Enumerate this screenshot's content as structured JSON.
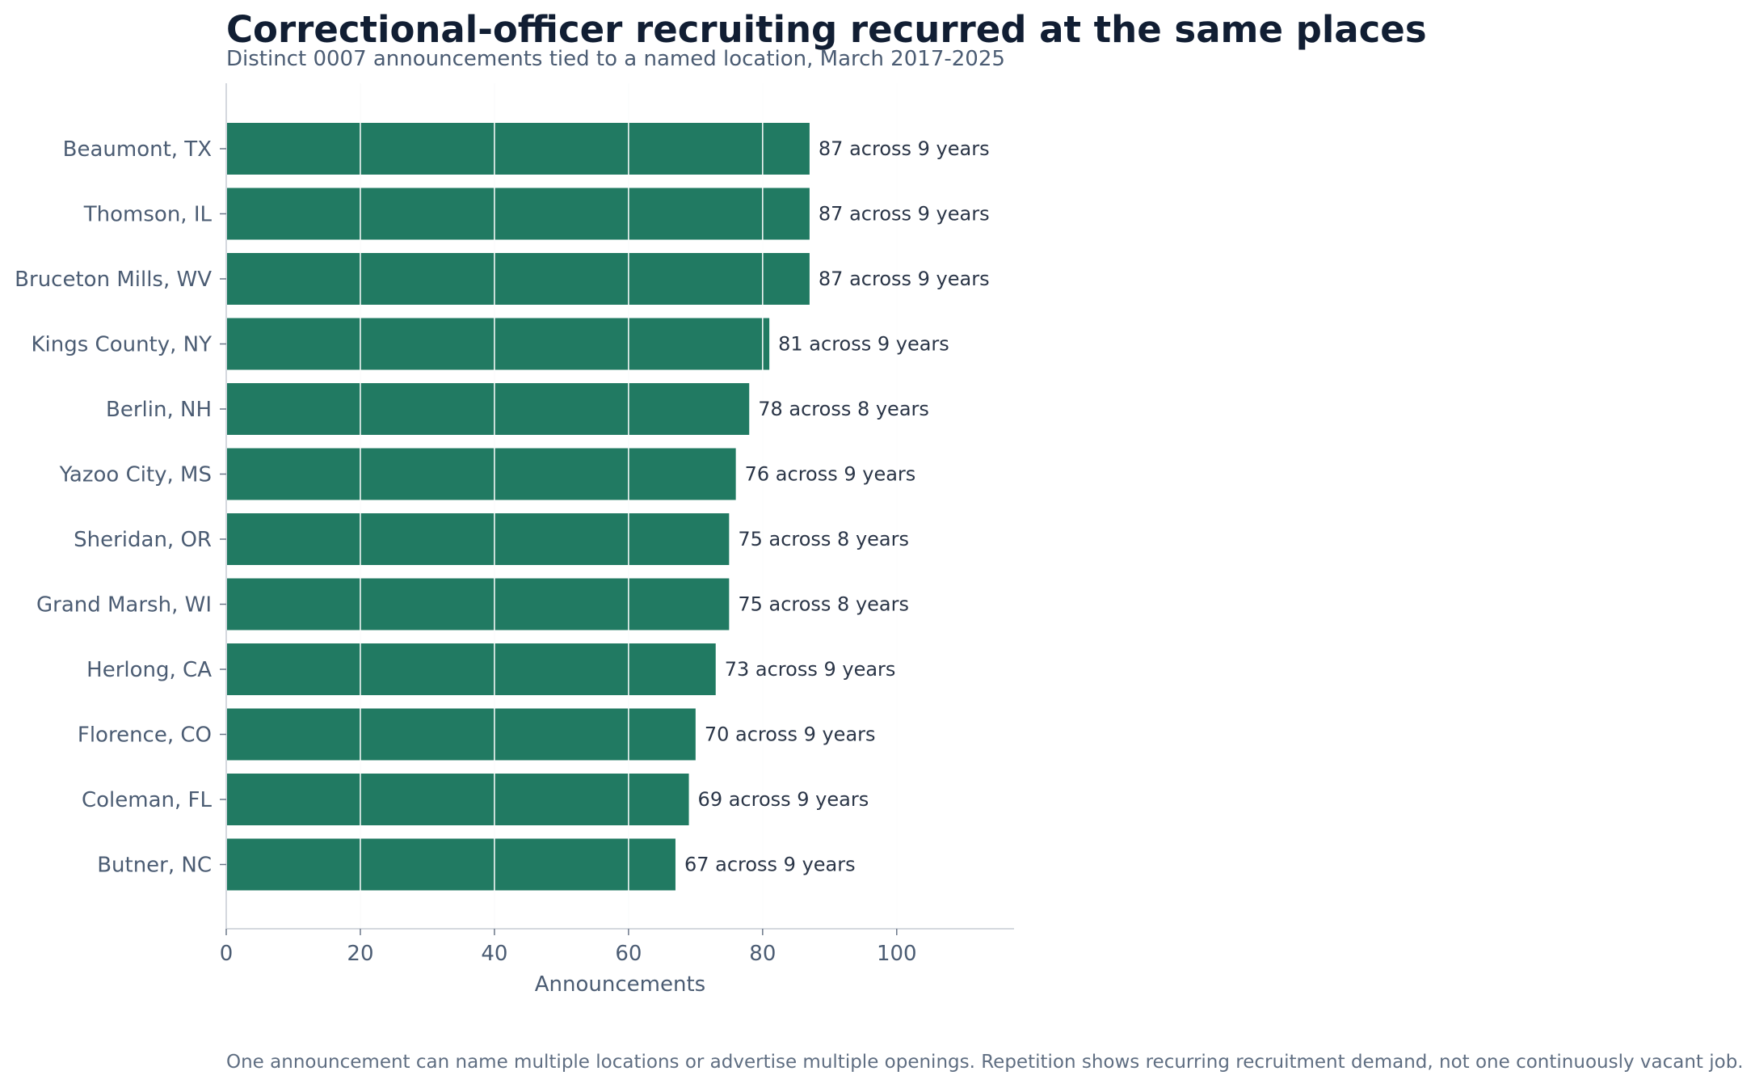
{
  "chart_data": {
    "type": "bar",
    "orientation": "horizontal",
    "title": "Correctional-officer recruiting recurred at the same places",
    "subtitle": "Distinct 0007 announcements tied to a named location, March 2017-2025",
    "xlabel": "Announcements",
    "ylabel": "",
    "note": "One announcement can name multiple locations or advertise multiple openings. Repetition shows recurring recruitment demand, not one continuously vacant job.",
    "xlim": [
      0,
      117.5
    ],
    "xticks": [
      0,
      20,
      40,
      60,
      80,
      100
    ],
    "grid": "vertical",
    "bar_color": "#217a62",
    "categories": [
      "Beaumont, TX",
      "Thomson, IL",
      "Bruceton Mills, WV",
      "Kings County, NY",
      "Berlin, NH",
      "Yazoo City, MS",
      "Sheridan, OR",
      "Grand Marsh, WI",
      "Herlong, CA",
      "Florence, CO",
      "Coleman, FL",
      "Butner, NC"
    ],
    "values": [
      87,
      87,
      87,
      81,
      78,
      76,
      75,
      75,
      73,
      70,
      69,
      67
    ],
    "data_labels": [
      "87 across 9 years",
      "87 across 9 years",
      "87 across 9 years",
      "81 across 9 years",
      "78 across 8 years",
      "76 across 9 years",
      "75 across 8 years",
      "75 across 8 years",
      "73 across 9 years",
      "70 across 9 years",
      "69 across 9 years",
      "67 across 9 years"
    ]
  }
}
